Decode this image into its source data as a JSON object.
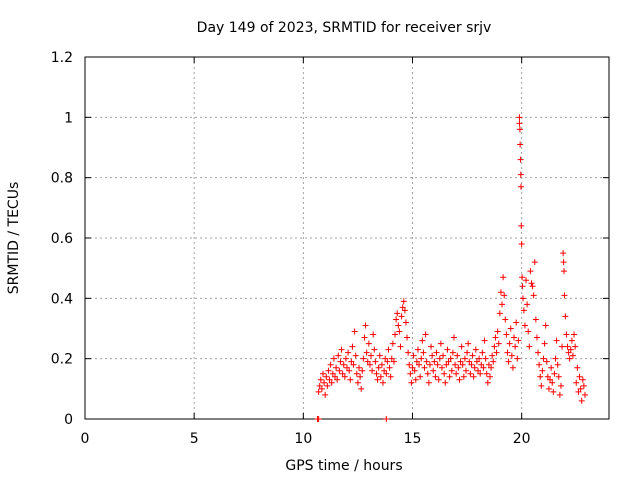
{
  "chart_data": {
    "type": "scatter",
    "title": "Day 149 of 2023, SRMTID for receiver srjv",
    "xlabel": "GPS time / hours",
    "ylabel": "SRMTID / TECUs",
    "xlim": [
      0,
      24
    ],
    "ylim": [
      0,
      1.2
    ],
    "xticks": [
      0,
      5,
      10,
      15,
      20
    ],
    "xtick_labels": [
      "0",
      "5",
      "10",
      "15",
      "20"
    ],
    "yticks": [
      0,
      0.2,
      0.4,
      0.6,
      0.8,
      1.0,
      1.2
    ],
    "ytick_labels": [
      "0",
      "0.2",
      "0.4",
      "0.6",
      "0.8",
      "1",
      "1.2"
    ],
    "grid": true,
    "marker": "+",
    "color": "#ff0000",
    "series": [
      {
        "name": "SRMTID",
        "points": [
          [
            10.65,
            0.0
          ],
          [
            10.7,
            0.0
          ],
          [
            13.8,
            0.0
          ],
          [
            10.7,
            0.09
          ],
          [
            10.75,
            0.11
          ],
          [
            10.8,
            0.13
          ],
          [
            10.85,
            0.1
          ],
          [
            10.9,
            0.15
          ],
          [
            10.95,
            0.12
          ],
          [
            11.0,
            0.08
          ],
          [
            11.05,
            0.14
          ],
          [
            11.1,
            0.11
          ],
          [
            11.15,
            0.16
          ],
          [
            11.2,
            0.13
          ],
          [
            11.25,
            0.18
          ],
          [
            11.3,
            0.12
          ],
          [
            11.35,
            0.15
          ],
          [
            11.4,
            0.2
          ],
          [
            11.45,
            0.14
          ],
          [
            11.5,
            0.17
          ],
          [
            11.55,
            0.13
          ],
          [
            11.6,
            0.21
          ],
          [
            11.65,
            0.16
          ],
          [
            11.7,
            0.19
          ],
          [
            11.75,
            0.23
          ],
          [
            11.8,
            0.15
          ],
          [
            11.85,
            0.18
          ],
          [
            11.9,
            0.14
          ],
          [
            11.95,
            0.2
          ],
          [
            12.0,
            0.17
          ],
          [
            12.05,
            0.22
          ],
          [
            12.1,
            0.16
          ],
          [
            12.15,
            0.13
          ],
          [
            12.2,
            0.19
          ],
          [
            12.25,
            0.24
          ],
          [
            12.3,
            0.18
          ],
          [
            12.35,
            0.29
          ],
          [
            12.4,
            0.21
          ],
          [
            12.45,
            0.15
          ],
          [
            12.5,
            0.12
          ],
          [
            12.55,
            0.17
          ],
          [
            12.6,
            0.14
          ],
          [
            12.65,
            0.1
          ],
          [
            12.7,
            0.16
          ],
          [
            12.75,
            0.2
          ],
          [
            12.8,
            0.27
          ],
          [
            12.85,
            0.31
          ],
          [
            12.9,
            0.22
          ],
          [
            12.95,
            0.19
          ],
          [
            13.0,
            0.25
          ],
          [
            13.05,
            0.18
          ],
          [
            13.1,
            0.21
          ],
          [
            13.15,
            0.16
          ],
          [
            13.2,
            0.28
          ],
          [
            13.25,
            0.23
          ],
          [
            13.3,
            0.19
          ],
          [
            13.35,
            0.15
          ],
          [
            13.4,
            0.13
          ],
          [
            13.45,
            0.17
          ],
          [
            13.5,
            0.21
          ],
          [
            13.55,
            0.14
          ],
          [
            13.6,
            0.18
          ],
          [
            13.65,
            0.12
          ],
          [
            13.7,
            0.16
          ],
          [
            13.75,
            0.2
          ],
          [
            13.8,
            0.15
          ],
          [
            13.85,
            0.19
          ],
          [
            13.9,
            0.23
          ],
          [
            13.95,
            0.17
          ],
          [
            14.0,
            0.14
          ],
          [
            14.05,
            0.2
          ],
          [
            14.1,
            0.25
          ],
          [
            14.15,
            0.19
          ],
          [
            14.2,
            0.28
          ],
          [
            14.25,
            0.33
          ],
          [
            14.3,
            0.35
          ],
          [
            14.35,
            0.31
          ],
          [
            14.4,
            0.29
          ],
          [
            14.45,
            0.24
          ],
          [
            14.5,
            0.34
          ],
          [
            14.55,
            0.37
          ],
          [
            14.6,
            0.39
          ],
          [
            14.65,
            0.36
          ],
          [
            14.7,
            0.32
          ],
          [
            14.75,
            0.27
          ],
          [
            14.8,
            0.22
          ],
          [
            14.85,
            0.18
          ],
          [
            14.9,
            0.15
          ],
          [
            14.95,
            0.12
          ],
          [
            15.0,
            0.17
          ],
          [
            15.05,
            0.21
          ],
          [
            15.1,
            0.16
          ],
          [
            15.15,
            0.13
          ],
          [
            15.2,
            0.19
          ],
          [
            15.25,
            0.23
          ],
          [
            15.3,
            0.18
          ],
          [
            15.35,
            0.14
          ],
          [
            15.4,
            0.2
          ],
          [
            15.45,
            0.26
          ],
          [
            15.5,
            0.22
          ],
          [
            15.55,
            0.17
          ],
          [
            15.6,
            0.28
          ],
          [
            15.65,
            0.19
          ],
          [
            15.7,
            0.15
          ],
          [
            15.75,
            0.12
          ],
          [
            15.8,
            0.18
          ],
          [
            15.85,
            0.24
          ],
          [
            15.9,
            0.21
          ],
          [
            15.95,
            0.16
          ],
          [
            16.0,
            0.19
          ],
          [
            16.05,
            0.14
          ],
          [
            16.1,
            0.22
          ],
          [
            16.15,
            0.18
          ],
          [
            16.2,
            0.13
          ],
          [
            16.25,
            0.2
          ],
          [
            16.3,
            0.25
          ],
          [
            16.35,
            0.17
          ],
          [
            16.4,
            0.21
          ],
          [
            16.45,
            0.15
          ],
          [
            16.5,
            0.12
          ],
          [
            16.55,
            0.18
          ],
          [
            16.6,
            0.23
          ],
          [
            16.65,
            0.19
          ],
          [
            16.7,
            0.14
          ],
          [
            16.75,
            0.2
          ],
          [
            16.8,
            0.16
          ],
          [
            16.85,
            0.22
          ],
          [
            16.9,
            0.27
          ],
          [
            16.95,
            0.18
          ],
          [
            17.0,
            0.15
          ],
          [
            17.05,
            0.21
          ],
          [
            17.1,
            0.17
          ],
          [
            17.15,
            0.13
          ],
          [
            17.2,
            0.19
          ],
          [
            17.25,
            0.24
          ],
          [
            17.3,
            0.18
          ],
          [
            17.35,
            0.14
          ],
          [
            17.4,
            0.2
          ],
          [
            17.45,
            0.16
          ],
          [
            17.5,
            0.22
          ],
          [
            17.55,
            0.25
          ],
          [
            17.6,
            0.19
          ],
          [
            17.65,
            0.15
          ],
          [
            17.7,
            0.18
          ],
          [
            17.75,
            0.21
          ],
          [
            17.8,
            0.14
          ],
          [
            17.85,
            0.17
          ],
          [
            17.9,
            0.23
          ],
          [
            17.95,
            0.19
          ],
          [
            18.0,
            0.16
          ],
          [
            18.05,
            0.2
          ],
          [
            18.1,
            0.15
          ],
          [
            18.15,
            0.18
          ],
          [
            18.2,
            0.22
          ],
          [
            18.25,
            0.17
          ],
          [
            18.3,
            0.26
          ],
          [
            18.35,
            0.2
          ],
          [
            18.4,
            0.15
          ],
          [
            18.45,
            0.12
          ],
          [
            18.5,
            0.18
          ],
          [
            18.55,
            0.14
          ],
          [
            18.6,
            0.17
          ],
          [
            18.65,
            0.21
          ],
          [
            18.7,
            0.19
          ],
          [
            18.75,
            0.24
          ],
          [
            18.8,
            0.27
          ],
          [
            18.85,
            0.22
          ],
          [
            18.9,
            0.29
          ],
          [
            18.95,
            0.25
          ],
          [
            19.0,
            0.35
          ],
          [
            19.05,
            0.42
          ],
          [
            19.1,
            0.38
          ],
          [
            19.15,
            0.47
          ],
          [
            19.2,
            0.41
          ],
          [
            19.25,
            0.33
          ],
          [
            19.3,
            0.28
          ],
          [
            19.35,
            0.22
          ],
          [
            19.4,
            0.19
          ],
          [
            19.45,
            0.25
          ],
          [
            19.5,
            0.3
          ],
          [
            19.55,
            0.21
          ],
          [
            19.6,
            0.17
          ],
          [
            19.65,
            0.27
          ],
          [
            19.7,
            0.24
          ],
          [
            19.75,
            0.32
          ],
          [
            19.8,
            0.2
          ],
          [
            19.85,
            0.26
          ],
          [
            19.9,
            1.0
          ],
          [
            19.9,
            0.98
          ],
          [
            19.92,
            0.96
          ],
          [
            19.93,
            0.91
          ],
          [
            19.95,
            0.86
          ],
          [
            19.96,
            0.81
          ],
          [
            19.97,
            0.77
          ],
          [
            19.98,
            0.64
          ],
          [
            20.0,
            0.58
          ],
          [
            20.02,
            0.47
          ],
          [
            20.04,
            0.44
          ],
          [
            20.06,
            0.4
          ],
          [
            20.1,
            0.36
          ],
          [
            20.15,
            0.31
          ],
          [
            20.2,
            0.46
          ],
          [
            20.25,
            0.38
          ],
          [
            20.3,
            0.29
          ],
          [
            20.35,
            0.24
          ],
          [
            20.4,
            0.49
          ],
          [
            20.45,
            0.45
          ],
          [
            20.5,
            0.44
          ],
          [
            20.55,
            0.41
          ],
          [
            20.6,
            0.52
          ],
          [
            20.65,
            0.33
          ],
          [
            20.7,
            0.27
          ],
          [
            20.75,
            0.22
          ],
          [
            20.8,
            0.18
          ],
          [
            20.85,
            0.14
          ],
          [
            20.9,
            0.11
          ],
          [
            20.95,
            0.16
          ],
          [
            21.0,
            0.2
          ],
          [
            21.05,
            0.25
          ],
          [
            21.1,
            0.31
          ],
          [
            21.15,
            0.19
          ],
          [
            21.2,
            0.14
          ],
          [
            21.25,
            0.1
          ],
          [
            21.3,
            0.13
          ],
          [
            21.35,
            0.17
          ],
          [
            21.4,
            0.12
          ],
          [
            21.45,
            0.09
          ],
          [
            21.5,
            0.15
          ],
          [
            21.55,
            0.2
          ],
          [
            21.6,
            0.26
          ],
          [
            21.65,
            0.18
          ],
          [
            21.7,
            0.14
          ],
          [
            21.75,
            0.08
          ],
          [
            21.8,
            0.11
          ],
          [
            21.85,
            0.24
          ],
          [
            21.9,
            0.55
          ],
          [
            21.92,
            0.52
          ],
          [
            21.94,
            0.49
          ],
          [
            21.96,
            0.41
          ],
          [
            22.0,
            0.34
          ],
          [
            22.05,
            0.28
          ],
          [
            22.1,
            0.24
          ],
          [
            22.15,
            0.22
          ],
          [
            22.2,
            0.2
          ],
          [
            22.25,
            0.23
          ],
          [
            22.3,
            0.26
          ],
          [
            22.35,
            0.21
          ],
          [
            22.4,
            0.28
          ],
          [
            22.45,
            0.24
          ],
          [
            22.5,
            0.12
          ],
          [
            22.55,
            0.17
          ],
          [
            22.6,
            0.09
          ],
          [
            22.65,
            0.14
          ],
          [
            22.7,
            0.1
          ],
          [
            22.75,
            0.06
          ],
          [
            22.8,
            0.13
          ],
          [
            22.85,
            0.11
          ],
          [
            22.9,
            0.08
          ]
        ]
      }
    ]
  }
}
